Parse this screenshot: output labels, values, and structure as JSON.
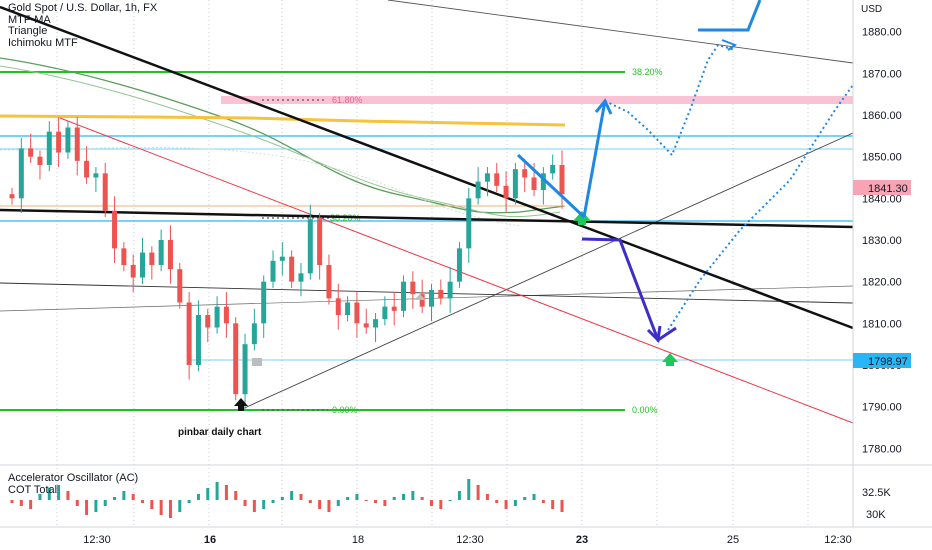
{
  "header": {
    "symbol_line": "Gold Spot / U.S. Dollar, 1h, FX",
    "indicators": [
      "MTF-MA",
      "Triangle",
      "Ichimoku MTF"
    ]
  },
  "oscillator": {
    "labels": [
      "Accelerator Oscillator (AC)",
      "COT Total"
    ],
    "scale_ticks": [
      "32.5K",
      "30K"
    ]
  },
  "annotations": {
    "pinbar_label": "pinbar daily chart",
    "fib_382_right": "38.20%",
    "fib_618_mid": "61.80%",
    "fib_382_mid": "38.20%",
    "fib_0_mid": "0.00%",
    "fib_0_right": "0.00%"
  },
  "colors": {
    "fib_green": "#22c122",
    "orange": "#f7c23c",
    "light_blue": "#4fc3f7",
    "red_line": "#f23645",
    "blue_arrow": "#1e88e5",
    "purple_arrow": "#3d2ec9",
    "price_tag": "#f8a4b4",
    "blue_tag": "#29b6f6",
    "candle_up": "#26a69a",
    "candle_down": "#ef5350",
    "pink_zone": "#f8bbd0"
  },
  "chart_data": {
    "type": "candlestick",
    "symbol": "Gold Spot / U.S. Dollar",
    "timeframe": "1h",
    "x_tick_labels": [
      "12:30",
      "16",
      "18",
      "12:30",
      "23",
      "25",
      "12:30"
    ],
    "y_axis": {
      "unit": "USD",
      "ticks": [
        1880.0,
        1870.0,
        1860.0,
        1850.0,
        1840.0,
        1830.0,
        1820.0,
        1810.0,
        1800.0,
        1790.0,
        1780.0
      ],
      "range": [
        1776,
        1887
      ]
    },
    "current_price": "1841.30",
    "marked_price": "1798.97",
    "horizontal_levels": [
      {
        "label": "38.20%",
        "price": 1870.4
      },
      {
        "label": "61.80%",
        "price": 1862.6
      },
      {
        "label": "0.00%",
        "price": 1786.8
      }
    ],
    "candles_close_path": [
      1840,
      1852,
      1850,
      1848,
      1856,
      1851,
      1857,
      1849,
      1845,
      1846,
      1837,
      1828,
      1824,
      1821,
      1827,
      1824,
      1830,
      1823,
      1815,
      1800,
      1812,
      1809,
      1814,
      1810,
      1793,
      1805,
      1810,
      1820,
      1825,
      1826,
      1820,
      1822,
      1835,
      1824,
      1816,
      1812,
      1815,
      1810,
      1809,
      1811,
      1814,
      1813,
      1820,
      1817,
      1814,
      1818,
      1816,
      1820,
      1828,
      1840,
      1844,
      1846,
      1843,
      1840,
      1847,
      1845,
      1842,
      1846,
      1848,
      1841
    ],
    "oscillator_values": [
      -1,
      -2,
      -3,
      2,
      4,
      5,
      3,
      -2,
      -5,
      -4,
      -2,
      1,
      3,
      2,
      -1,
      -3,
      -5,
      -6,
      -4,
      -1,
      2,
      4,
      6,
      5,
      3,
      -2,
      -4,
      -3,
      -1,
      1,
      3,
      2,
      -1,
      -3,
      -4,
      -2,
      1,
      2,
      0,
      -1,
      -2,
      1,
      2,
      3,
      1,
      -2,
      -3,
      0,
      3,
      7,
      5,
      2,
      -1,
      -3,
      -2,
      1,
      2,
      -1,
      -3,
      -4
    ],
    "projection_path_arrows": [
      {
        "from": [
          1835,
          1849
        ],
        "to": [
          1833,
          1836
        ],
        "note": "blue down"
      },
      {
        "from": [
          1834,
          1834
        ],
        "to": [
          1862,
          1862
        ],
        "note": "blue up"
      },
      {
        "from": [
          1829,
          1829
        ],
        "to": [
          1803,
          1803
        ],
        "note": "purple down"
      }
    ]
  }
}
